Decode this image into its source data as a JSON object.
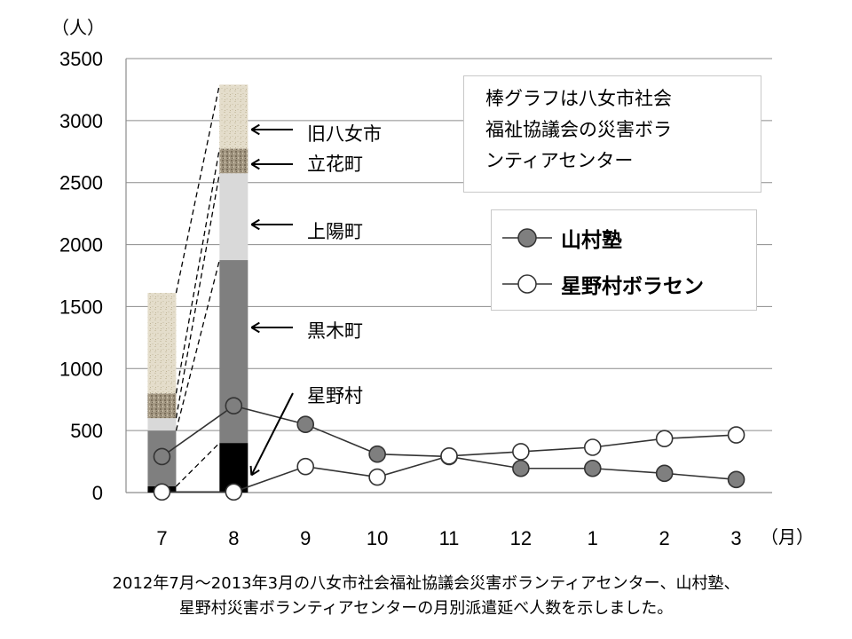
{
  "chart_data": {
    "type": "bar",
    "y_unit_label": "（人）",
    "x_unit_label": "（月）",
    "ylim": [
      0,
      3500
    ],
    "yticks": [
      0,
      500,
      1000,
      1500,
      2000,
      2500,
      3000,
      3500
    ],
    "categories": [
      "7",
      "8",
      "9",
      "10",
      "11",
      "12",
      "1",
      "2",
      "3"
    ],
    "stacked_bars": {
      "categories": [
        "7",
        "8"
      ],
      "segments": [
        {
          "name": "星野村",
          "values": [
            50,
            400
          ],
          "color": "#000000"
        },
        {
          "name": "黒木町",
          "values": [
            450,
            1475
          ],
          "color": "#7f7f7f"
        },
        {
          "name": "上陽町",
          "values": [
            100,
            700
          ],
          "color": "#d9d9d9"
        },
        {
          "name": "立花町",
          "values": [
            200,
            200
          ],
          "color": "#9a8e78"
        },
        {
          "name": "旧八女市",
          "values": [
            810,
            515
          ],
          "color": "#e2dccb"
        }
      ]
    },
    "series": [
      {
        "name": "山村塾",
        "marker": "filled",
        "color": "#7f7f7f",
        "values": [
          290,
          700,
          550,
          310,
          290,
          195,
          195,
          155,
          105
        ]
      },
      {
        "name": "星野村ボラセン",
        "marker": "open",
        "color": "#ffffff",
        "values": [
          5,
          5,
          210,
          125,
          295,
          330,
          365,
          435,
          465
        ]
      }
    ],
    "grid": true,
    "legend_position": "right"
  },
  "annotations": {
    "note_lines": [
      "棒グラフは八女市社会",
      "福祉協議会の災害ボラ",
      "ンティアセンター"
    ],
    "arrow_labels": [
      "旧八女市",
      "立花町",
      "上陽町",
      "黒木町",
      "星野村"
    ]
  },
  "caption": {
    "line1": "2012年7月～2013年3月の八女市社会福祉協議会災害ボランティアセンター、山村塾、",
    "line2": "星野村災害ボランティアセンターの月別派遣延べ人数を示しました。"
  }
}
